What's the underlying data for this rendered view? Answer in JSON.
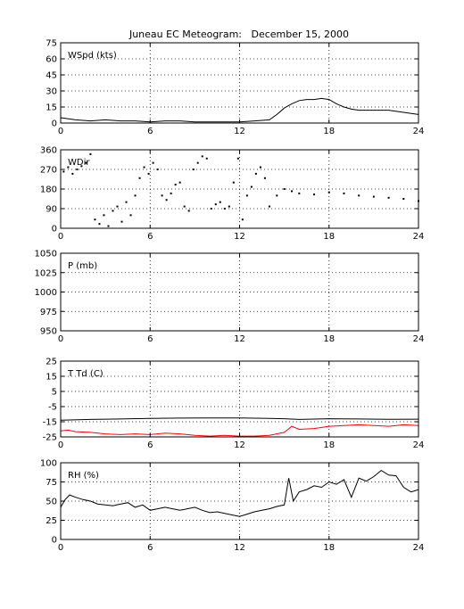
{
  "title": "Juneau EC Meteogram:   December 15, 2000",
  "chart_data": [
    {
      "type": "line",
      "panel_label": "WSpd (kts)",
      "xlim": [
        0,
        24
      ],
      "ylim": [
        0,
        75
      ],
      "xticks": [
        0,
        6,
        12,
        18,
        24
      ],
      "yticks": [
        0,
        15,
        30,
        45,
        60,
        75
      ],
      "grid": true,
      "series": [
        {
          "color": "#000000",
          "x": [
            0,
            1,
            2,
            3,
            4,
            5,
            6,
            7,
            8,
            9,
            10,
            11,
            12,
            13,
            14,
            14.5,
            15,
            15.5,
            16,
            16.5,
            17,
            17.5,
            18,
            18.5,
            19,
            19.5,
            20,
            21,
            22,
            23,
            24
          ],
          "y": [
            5,
            3,
            2,
            3,
            2,
            2,
            1,
            2,
            2,
            1,
            1,
            1,
            1,
            2,
            3,
            8,
            14,
            18,
            21,
            22,
            22,
            23,
            22,
            18,
            15,
            13,
            12,
            12,
            12,
            10,
            8
          ]
        }
      ]
    },
    {
      "type": "scatter",
      "panel_label": "WDir",
      "xlim": [
        0,
        24
      ],
      "ylim": [
        0,
        360
      ],
      "xticks": [
        0,
        6,
        12,
        18,
        24
      ],
      "yticks": [
        0,
        90,
        180,
        270,
        360
      ],
      "grid": true,
      "series": [
        {
          "color": "#000000",
          "x": [
            0.2,
            0.5,
            0.8,
            1.1,
            1.4,
            1.7,
            2.0,
            2.3,
            2.6,
            2.9,
            3.2,
            3.5,
            3.8,
            4.1,
            4.4,
            4.7,
            5.0,
            5.3,
            5.6,
            5.9,
            6.2,
            6.5,
            6.8,
            7.1,
            7.4,
            7.7,
            8.0,
            8.3,
            8.6,
            8.9,
            9.2,
            9.5,
            9.8,
            10.1,
            10.4,
            10.7,
            11.0,
            11.3,
            11.6,
            11.9,
            12.2,
            12.5,
            12.8,
            13.1,
            13.4,
            13.7,
            14.0,
            14.5,
            15.0,
            15.5,
            16,
            17,
            18,
            19,
            20,
            21,
            22,
            23,
            24
          ],
          "y": [
            260,
            280,
            250,
            270,
            285,
            300,
            340,
            40,
            20,
            60,
            10,
            80,
            100,
            30,
            120,
            60,
            150,
            230,
            280,
            250,
            300,
            270,
            150,
            130,
            160,
            200,
            210,
            100,
            80,
            270,
            300,
            330,
            320,
            90,
            110,
            120,
            90,
            100,
            210,
            320,
            40,
            150,
            190,
            250,
            280,
            230,
            100,
            150,
            180,
            170,
            160,
            155,
            165,
            160,
            150,
            145,
            140,
            135,
            125
          ]
        }
      ]
    },
    {
      "type": "line",
      "panel_label": "P (mb)",
      "xlim": [
        0,
        24
      ],
      "ylim": [
        950,
        1050
      ],
      "xticks": [
        0,
        6,
        12,
        18,
        24
      ],
      "yticks": [
        950,
        975,
        1000,
        1025,
        1050
      ],
      "grid": true,
      "series": []
    },
    {
      "type": "line",
      "panel_label": "T Td (C)",
      "xlim": [
        0,
        24
      ],
      "ylim": [
        -25,
        25
      ],
      "xticks": [
        0,
        6,
        12,
        18,
        24
      ],
      "yticks": [
        -25,
        -15,
        -5,
        5,
        15,
        25
      ],
      "grid": true,
      "series": [
        {
          "color": "#000000",
          "x": [
            0,
            2,
            4,
            6,
            8,
            10,
            12,
            14,
            15,
            16,
            18,
            20,
            22,
            24
          ],
          "y": [
            -14,
            -13.5,
            -13.2,
            -12.8,
            -12.6,
            -12.5,
            -12.5,
            -12.8,
            -13,
            -13.5,
            -13,
            -13.2,
            -13.4,
            -13.3
          ]
        },
        {
          "color": "#ff0000",
          "x": [
            0,
            0.5,
            1,
            2,
            3,
            4,
            5,
            6,
            7,
            8,
            9,
            10,
            11,
            12,
            13,
            14,
            15,
            15.5,
            16,
            17,
            18,
            19,
            20,
            21,
            22,
            23,
            24
          ],
          "y": [
            -21,
            -20.5,
            -21.5,
            -22,
            -23,
            -23.5,
            -23,
            -23.5,
            -22.5,
            -23,
            -24,
            -24.5,
            -24,
            -24.5,
            -24.5,
            -24,
            -22,
            -18,
            -20,
            -19.5,
            -18,
            -17.5,
            -17,
            -17.5,
            -18,
            -17,
            -17.5
          ]
        }
      ]
    },
    {
      "type": "line",
      "panel_label": "RH (%)",
      "xlim": [
        0,
        24
      ],
      "ylim": [
        0,
        100
      ],
      "xticks": [
        0,
        6,
        12,
        18,
        24
      ],
      "yticks": [
        0,
        25,
        50,
        75,
        100
      ],
      "grid": true,
      "series": [
        {
          "color": "#000000",
          "x": [
            0,
            0.3,
            0.6,
            1,
            1.5,
            2,
            2.5,
            3,
            3.5,
            4,
            4.5,
            5,
            5.5,
            6,
            6.5,
            7,
            7.5,
            8,
            8.5,
            9,
            9.5,
            10,
            10.5,
            11,
            11.5,
            12,
            12.5,
            13,
            13.5,
            14,
            14.5,
            15,
            15.3,
            15.6,
            16,
            16.5,
            17,
            17.5,
            18,
            18.5,
            19,
            19.5,
            20,
            20.5,
            21,
            21.5,
            22,
            22.5,
            23,
            23.5,
            24
          ],
          "y": [
            42,
            52,
            58,
            55,
            52,
            50,
            46,
            45,
            44,
            46,
            48,
            42,
            45,
            38,
            40,
            42,
            40,
            38,
            40,
            42,
            38,
            35,
            36,
            34,
            32,
            30,
            33,
            36,
            38,
            40,
            43,
            45,
            80,
            50,
            62,
            65,
            70,
            68,
            75,
            72,
            78,
            55,
            80,
            76,
            82,
            90,
            84,
            83,
            68,
            62,
            65
          ]
        }
      ]
    }
  ]
}
